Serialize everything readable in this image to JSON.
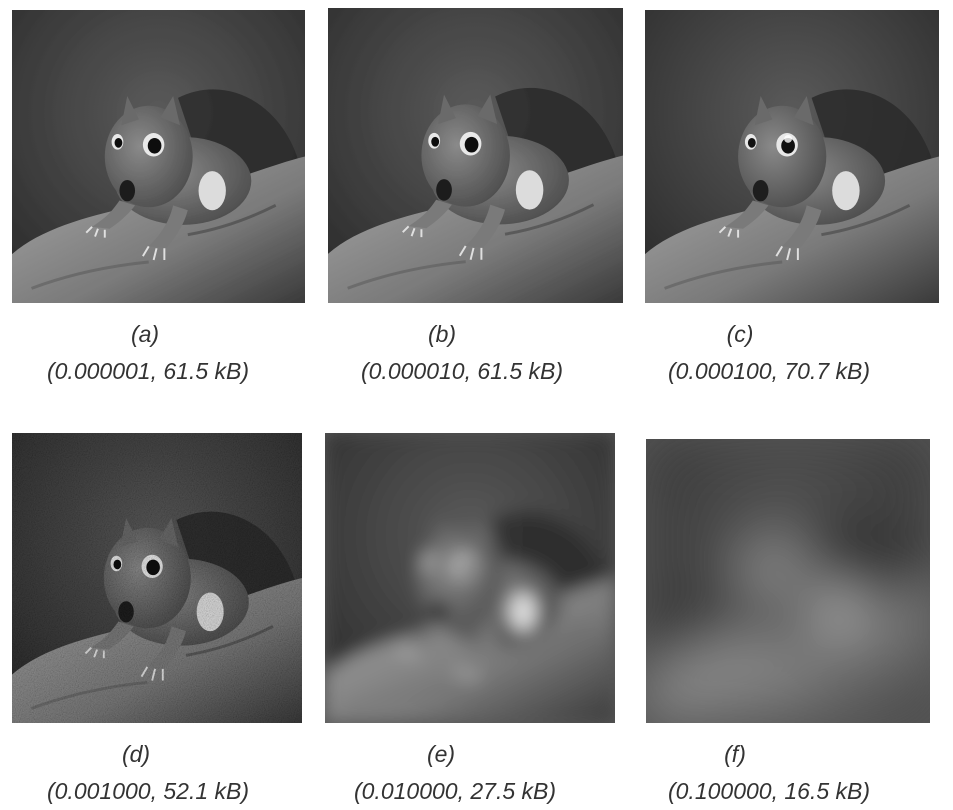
{
  "figure": {
    "panels": [
      {
        "label": "(a)",
        "caption": "(0.000001, 61.5 kB)"
      },
      {
        "label": "(b)",
        "caption": "(0.000010, 61.5 kB)"
      },
      {
        "label": "(c)",
        "caption": "(0.000100, 70.7 kB)"
      },
      {
        "label": "(d)",
        "caption": "(0.001000, 52.1 kB)"
      },
      {
        "label": "(e)",
        "caption": "(0.010000, 27.5 kB)"
      },
      {
        "label": "(f)",
        "caption": "(0.100000, 16.5 kB)"
      }
    ]
  }
}
